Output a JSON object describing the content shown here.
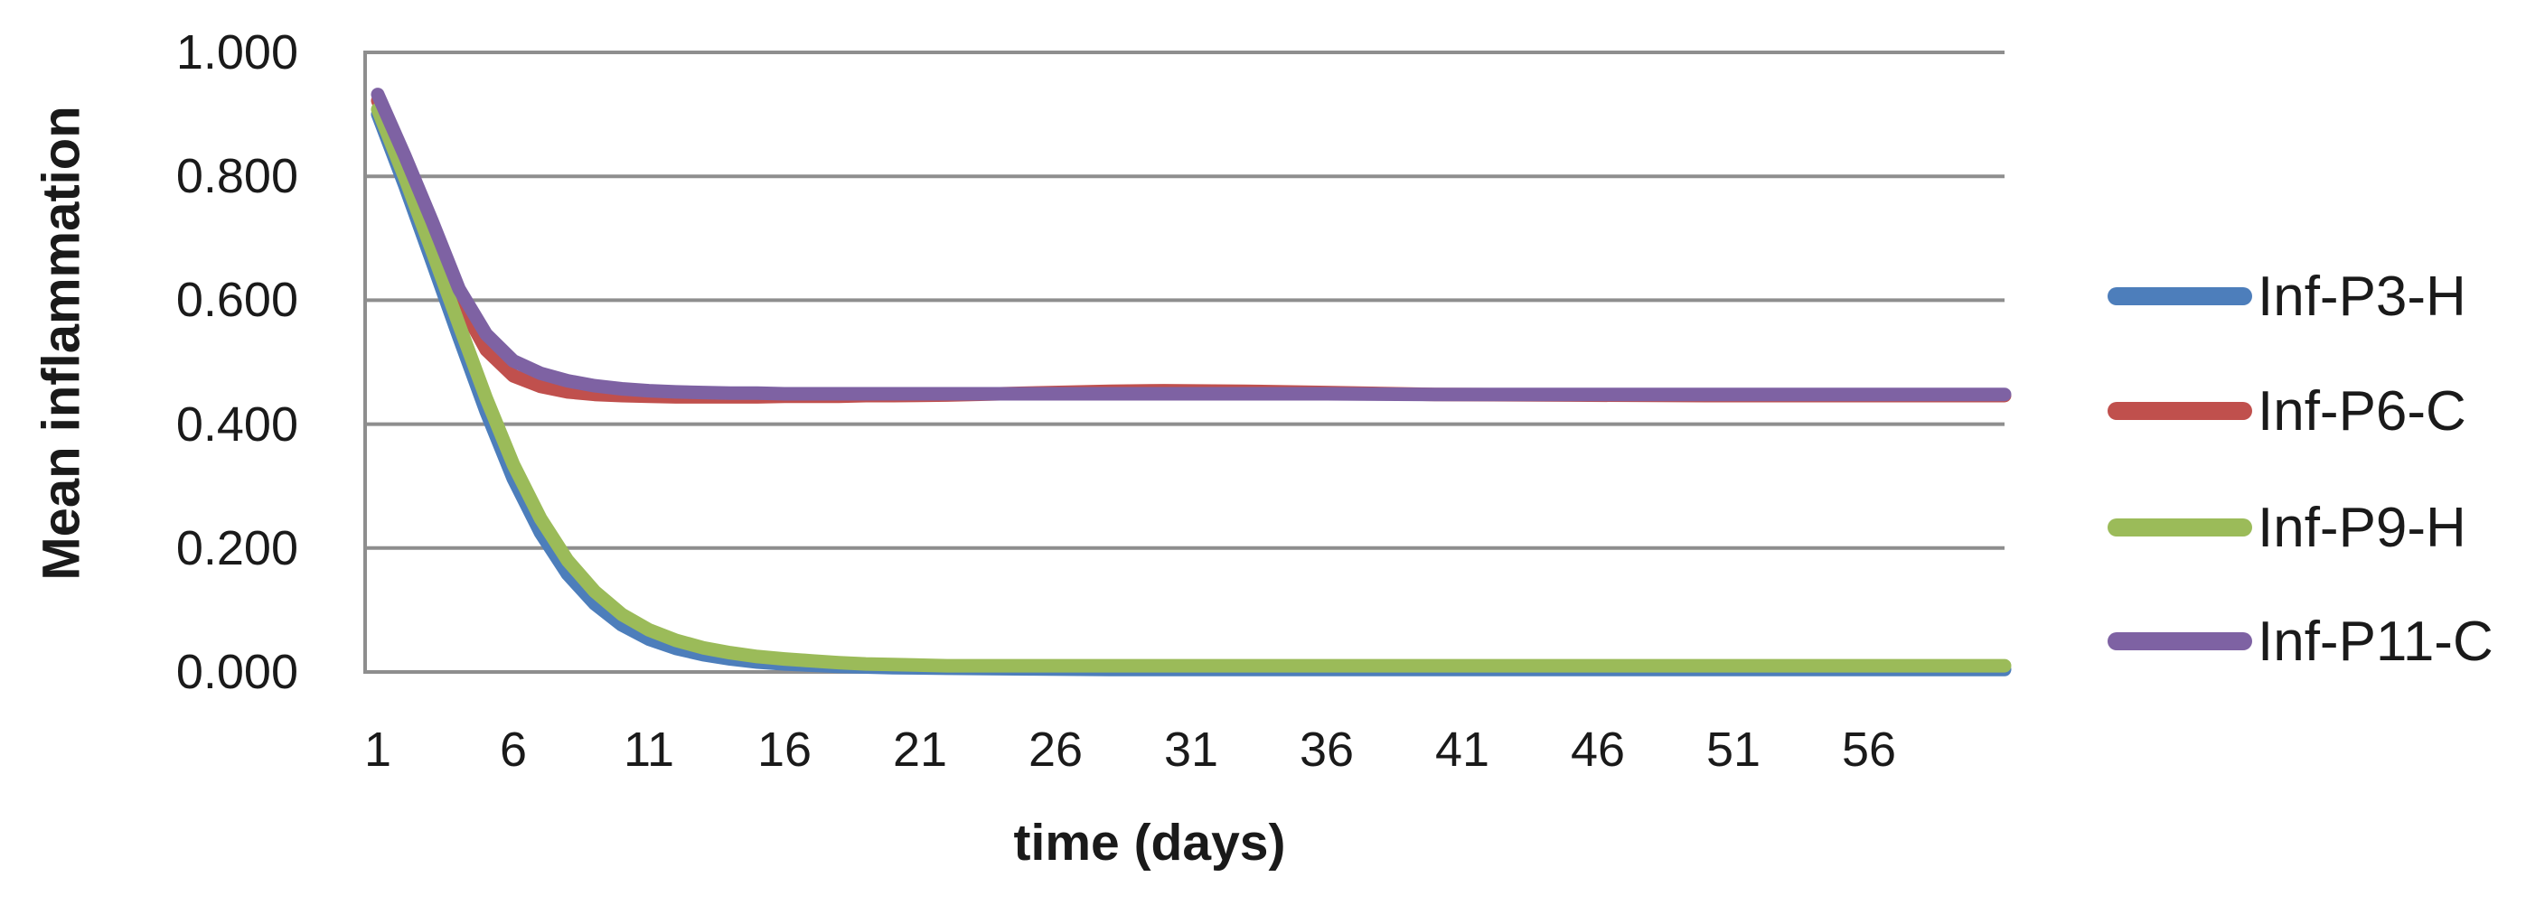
{
  "chart_data": {
    "type": "line",
    "title": "",
    "xlabel": "time (days)",
    "ylabel": "Mean inflammation",
    "x_tick_labels": [
      "1",
      "6",
      "11",
      "16",
      "21",
      "26",
      "31",
      "36",
      "41",
      "46",
      "51",
      "56"
    ],
    "x_tick_days": [
      1,
      6,
      11,
      16,
      21,
      26,
      31,
      36,
      41,
      46,
      51,
      56
    ],
    "y_tick_labels": [
      "1.000",
      "0.800",
      "0.600",
      "0.400",
      "0.200",
      "0.000"
    ],
    "y_tick_values": [
      1.0,
      0.8,
      0.6,
      0.4,
      0.2,
      0.0
    ],
    "xlim": [
      1,
      61
    ],
    "ylim": [
      0,
      1
    ],
    "grid": "horizontal-gridlines",
    "legend_position": "right-of-plot",
    "axis_color": "#8E8E8E",
    "text_color": "#1A1A1A",
    "days": [
      1,
      2,
      3,
      4,
      5,
      6,
      7,
      8,
      9,
      10,
      11,
      12,
      13,
      14,
      15,
      16,
      17,
      18,
      19,
      20,
      22,
      25,
      28,
      30,
      33,
      36,
      40,
      45,
      50,
      55,
      61
    ],
    "series": [
      {
        "name": "Inf-P3-H",
        "color": "#4D7EBB",
        "values": [
          0.9,
          0.785,
          0.663,
          0.54,
          0.42,
          0.312,
          0.225,
          0.158,
          0.11,
          0.076,
          0.053,
          0.038,
          0.028,
          0.021,
          0.016,
          0.013,
          0.011,
          0.009,
          0.008,
          0.007,
          0.006,
          0.005,
          0.004,
          0.004,
          0.004,
          0.004,
          0.004,
          0.004,
          0.004,
          0.004,
          0.004
        ]
      },
      {
        "name": "Inf-P6-C",
        "color": "#C0504D",
        "values": [
          0.922,
          0.82,
          0.712,
          0.6,
          0.52,
          0.478,
          0.461,
          0.452,
          0.448,
          0.446,
          0.445,
          0.444,
          0.444,
          0.444,
          0.444,
          0.445,
          0.445,
          0.445,
          0.446,
          0.446,
          0.447,
          0.45,
          0.453,
          0.454,
          0.453,
          0.451,
          0.448,
          0.447,
          0.446,
          0.446,
          0.446
        ]
      },
      {
        "name": "Inf-P9-H",
        "color": "#9BBB59",
        "values": [
          0.908,
          0.798,
          0.68,
          0.56,
          0.442,
          0.335,
          0.248,
          0.18,
          0.13,
          0.093,
          0.068,
          0.051,
          0.039,
          0.031,
          0.025,
          0.021,
          0.018,
          0.015,
          0.013,
          0.012,
          0.01,
          0.01,
          0.01,
          0.01,
          0.01,
          0.01,
          0.01,
          0.01,
          0.01,
          0.01,
          0.01
        ]
      },
      {
        "name": "Inf-P11-C",
        "color": "#7E62A3",
        "values": [
          0.932,
          0.833,
          0.728,
          0.618,
          0.545,
          0.502,
          0.482,
          0.47,
          0.462,
          0.457,
          0.454,
          0.452,
          0.451,
          0.45,
          0.45,
          0.449,
          0.449,
          0.449,
          0.449,
          0.449,
          0.449,
          0.449,
          0.449,
          0.449,
          0.449,
          0.449,
          0.448,
          0.448,
          0.448,
          0.448,
          0.448
        ]
      }
    ]
  }
}
